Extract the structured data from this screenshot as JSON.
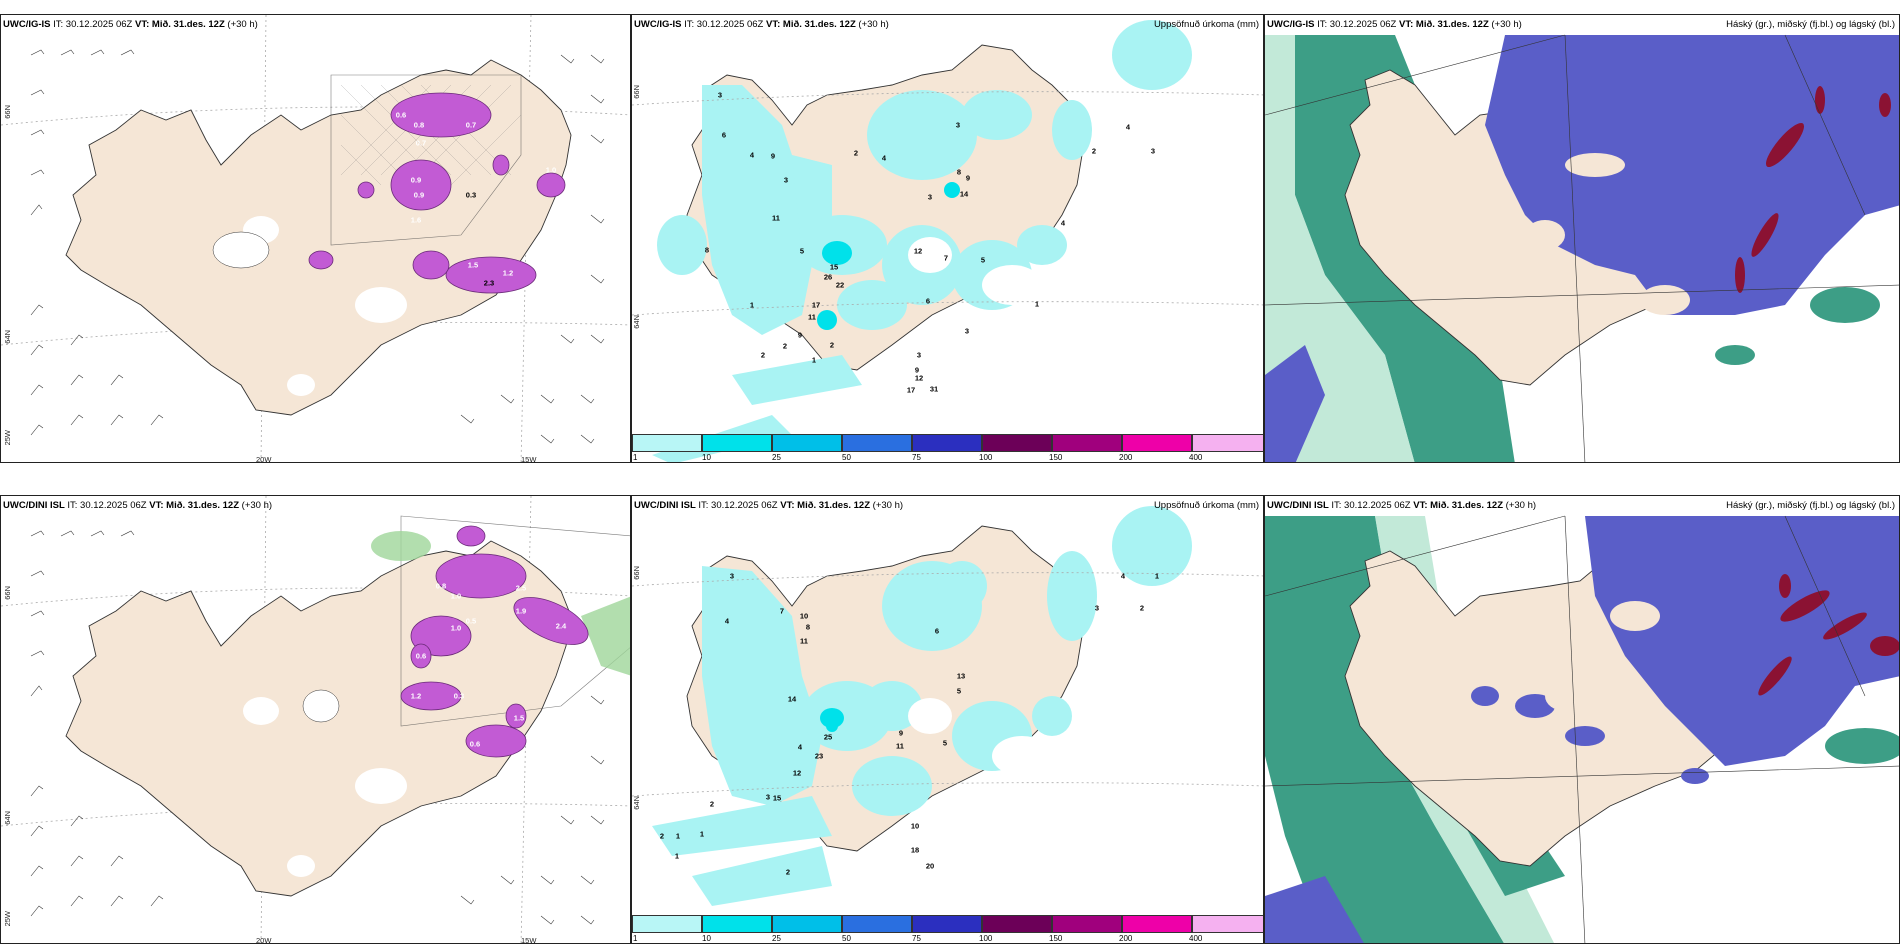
{
  "rows": [
    {
      "model": "UWC/IG-IS",
      "wind": {
        "it": "IT: 30.12.2025 06Z",
        "vt_label": "VT:",
        "vt_value": "Mið. 31.des. 12Z",
        "lead": "(+30 h)",
        "lon_labels": [
          "20W",
          "15W"
        ],
        "lat_labels": [
          "66N",
          "64N",
          "25W"
        ],
        "values": [
          "0.6",
          "0.8",
          "0.7",
          "0.7",
          "1.0",
          "0.9",
          "0.3",
          "1.6",
          "1.2",
          "2.3",
          "1.5",
          "0.9"
        ]
      },
      "precip": {
        "it": "IT: 30.12.2025 06Z",
        "vt_label": "VT:",
        "vt_value": "Mið. 31.des. 12Z",
        "lead": "(+30 h)",
        "right": "Uppsöfnuð úrkoma (mm)",
        "lat_labels": [
          "66N",
          "64N"
        ],
        "values": [
          "3",
          "6",
          "4",
          "9",
          "3",
          "2",
          "3",
          "4",
          "8",
          "9",
          "14",
          "3",
          "6",
          "3",
          "11",
          "5",
          "8",
          "12",
          "7",
          "26",
          "15",
          "22",
          "17",
          "11",
          "9",
          "3",
          "9",
          "12",
          "17",
          "31",
          "1",
          "2",
          "2",
          "2",
          "1",
          "4",
          "4",
          "2",
          "3",
          "1",
          "5"
        ]
      },
      "cloud": {
        "it": "IT: 30.12.2025 06Z",
        "vt_label": "VT:",
        "vt_value": "Mið. 31.des. 12Z",
        "lead": "(+30 h)",
        "right": "Háský (gr.), miðský (fj.bl.) og lágský (bl.)"
      }
    },
    {
      "model": "UWC/DINI ISL",
      "wind": {
        "it": "IT: 30.12.2025 06Z",
        "vt_label": "VT:",
        "vt_value": "Mið. 31.des. 12Z",
        "lead": "(+30 h)",
        "lon_labels": [
          "20W",
          "15W"
        ],
        "lat_labels": [
          "66N",
          "64N",
          "25W"
        ],
        "values": [
          "0.8",
          "1.0",
          "0.5",
          "2.5",
          "1.9",
          "2.4",
          "0.6",
          "1.2",
          "0.3",
          "1.0",
          "0.6",
          "1.5"
        ]
      },
      "precip": {
        "it": "IT: 30.12.2025 06Z",
        "vt_label": "VT:",
        "vt_value": "Mið. 31.des. 12Z",
        "lead": "(+30 h)",
        "right": "Uppsöfnuð úrkoma (mm)",
        "lat_labels": [
          "66N",
          "64N"
        ],
        "values": [
          "3",
          "4",
          "7",
          "10",
          "8",
          "11",
          "6",
          "14",
          "13",
          "5",
          "9",
          "11",
          "23",
          "25",
          "5",
          "4",
          "12",
          "15",
          "10",
          "18",
          "20",
          "3",
          "2",
          "2",
          "1",
          "1",
          "2",
          "1",
          "4",
          "3",
          "2",
          "1"
        ]
      },
      "cloud": {
        "it": "IT: 30.12.2025 06Z",
        "vt_label": "VT:",
        "vt_value": "Mið. 31.des. 12Z",
        "lead": "(+30 h)",
        "right": "Háský (gr.), miðský (fj.bl.) og lágský (bl.)"
      }
    }
  ],
  "legend": {
    "ticks": [
      "1",
      "10",
      "25",
      "50",
      "75",
      "100",
      "150",
      "200",
      "400"
    ],
    "colors": [
      "#b8f6f6",
      "#00e1ea",
      "#00bfe8",
      "#2a6fe0",
      "#2b2fbf",
      "#6c0058",
      "#a0007d",
      "#ee00a8",
      "#f5b1f0"
    ]
  },
  "colors": {
    "land": "#f5e6d6",
    "precip_light": "#a9f3f3",
    "snow": "#c25bd4",
    "high_cloud": "#3d9e86",
    "mid_cloud": "#5a5ec8",
    "low_cloud": "#8b1233"
  }
}
